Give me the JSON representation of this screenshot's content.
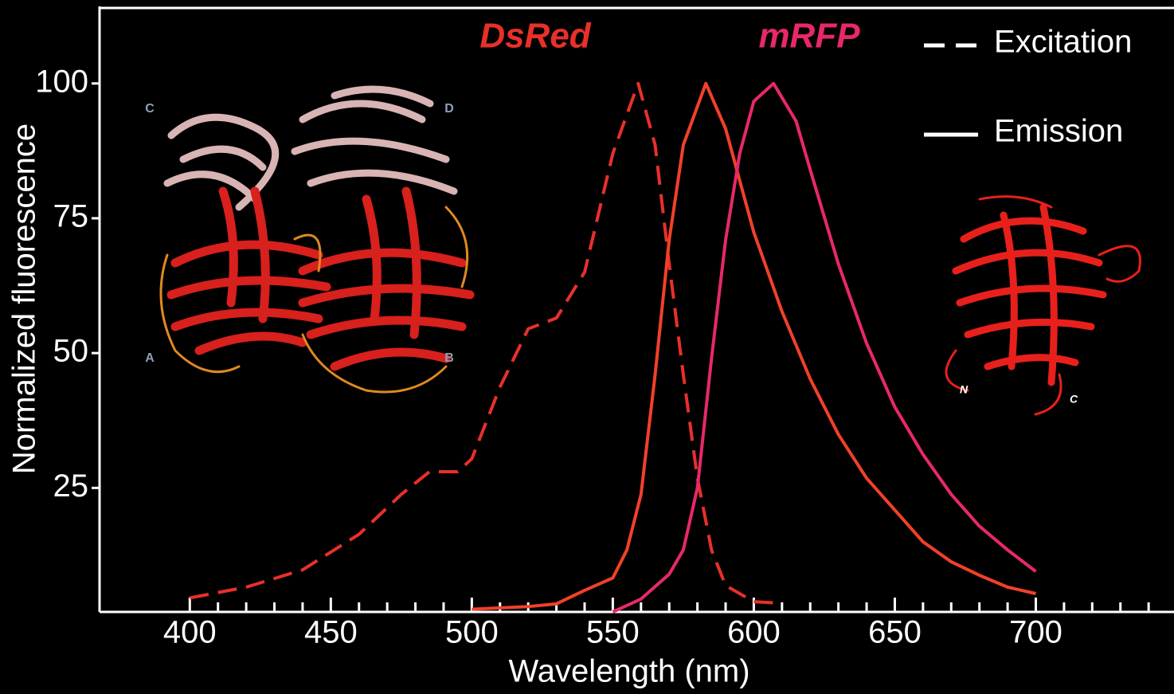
{
  "chart_data": {
    "type": "line",
    "xlabel": "Wavelength (nm)",
    "ylabel": "Normalized fluorescence",
    "xlim": [
      368,
      749
    ],
    "ylim": [
      2,
      114
    ],
    "xticks": [
      400,
      450,
      500,
      550,
      600,
      650,
      700
    ],
    "xminorticks": [
      410,
      420,
      430,
      440,
      460,
      470,
      480,
      490,
      510,
      520,
      530,
      540,
      560,
      570,
      580,
      590,
      610,
      620,
      630,
      640,
      660,
      670,
      680,
      690,
      710,
      720,
      730,
      740
    ],
    "yticks": [
      25,
      50,
      75,
      100
    ],
    "annotations": [
      "DsRed",
      "mRFP"
    ],
    "legend": [
      {
        "label": "Excitation",
        "dashed": true
      },
      {
        "label": "Emission",
        "dashed": false
      }
    ],
    "structure_labels": [
      "C",
      "D",
      "A",
      "B",
      "N",
      "C"
    ],
    "series": [
      {
        "color": "#e8302a",
        "dashed": true,
        "x": [
          400,
          420,
          440,
          460,
          475,
          485,
          495,
          500,
          510,
          520,
          530,
          540,
          550,
          559,
          565,
          570,
          575,
          580,
          585,
          590,
          600,
          610
        ],
        "values": [
          4.6,
          6.6,
          9.8,
          16.4,
          23.8,
          28,
          28,
          30.4,
          43.7,
          54.5,
          56.5,
          65,
          87,
          100,
          88.6,
          66.5,
          46,
          26.8,
          13.5,
          6.9,
          3.9,
          3.6
        ]
      },
      {
        "color": "#f2402a",
        "dashed": false,
        "x": [
          500,
          520,
          530,
          540,
          550,
          555,
          560,
          565,
          570,
          575,
          583,
          590,
          600,
          610,
          620,
          630,
          640,
          650,
          660,
          670,
          680,
          690,
          700
        ],
        "values": [
          2.5,
          3,
          3.5,
          6,
          8.3,
          13.5,
          23.8,
          46,
          71,
          88.6,
          100,
          91.6,
          72.4,
          57.7,
          45.2,
          34.9,
          26.8,
          20.9,
          15,
          11.3,
          8.8,
          6.6,
          5.4
        ]
      },
      {
        "color": "#e8286a",
        "dashed": false,
        "x": [
          550,
          560,
          570,
          575,
          580,
          585,
          590,
          595,
          600,
          607,
          615,
          620,
          630,
          640,
          650,
          660,
          670,
          680,
          690,
          700
        ],
        "values": [
          2,
          4.4,
          9,
          13.5,
          25,
          49,
          71,
          87,
          96.7,
          100,
          93,
          84,
          66.5,
          51.8,
          40,
          31.2,
          23.8,
          17.9,
          13.5,
          9.5
        ]
      }
    ]
  }
}
